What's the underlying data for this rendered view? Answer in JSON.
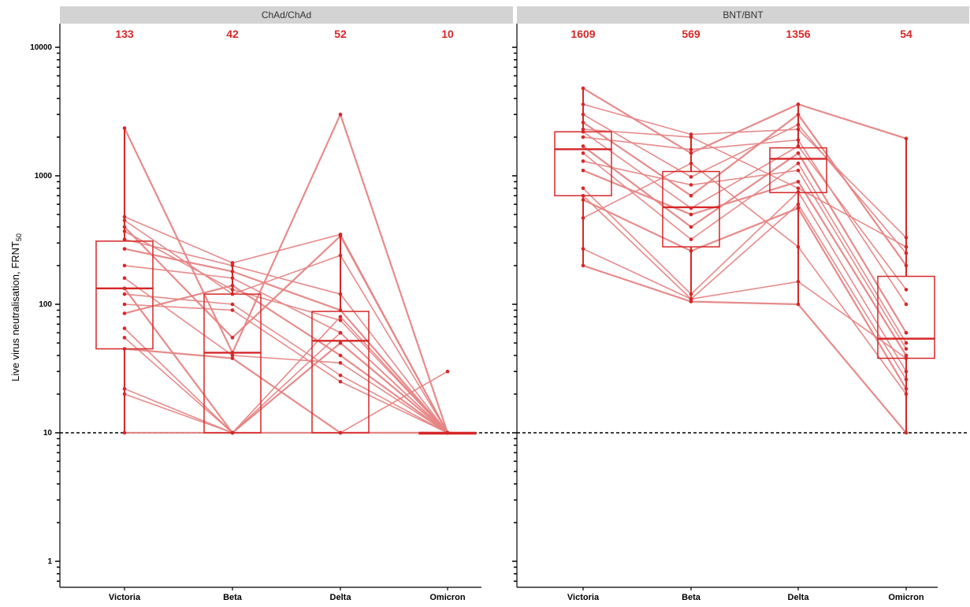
{
  "figure": {
    "ylabel": "Live virus neutralisation, FRNT",
    "ylabel_sub": "50",
    "threshold": 10,
    "accent_color": "#d62728",
    "line_color": "#e58585"
  },
  "chart_data": [
    {
      "type": "box",
      "panel": "ChAd/ChAd",
      "categories": [
        "Victoria",
        "Beta",
        "Delta",
        "Omicron"
      ],
      "geometric_means": [
        "133",
        "42",
        "52",
        "10"
      ],
      "yscale": "log",
      "ylim": [
        0.6,
        16000
      ],
      "yticks": [
        1,
        10,
        100,
        1000,
        10000
      ],
      "ytick_labels": [
        "1",
        "10",
        "100",
        "1000",
        "10000"
      ],
      "box_stats": [
        {
          "q1": 45,
          "median": 133,
          "q3": 310,
          "whisker_low": 10,
          "whisker_high": 2350
        },
        {
          "q1": 10,
          "median": 42,
          "q3": 120,
          "whisker_low": 10,
          "whisker_high": 210
        },
        {
          "q1": 10,
          "median": 52,
          "q3": 88,
          "whisker_low": 10,
          "whisker_high": 350
        },
        {
          "q1": 10,
          "median": 10,
          "q3": 10,
          "whisker_low": 10,
          "whisker_high": 10
        }
      ],
      "subjects": [
        [
          2350,
          42,
          3000,
          10
        ],
        [
          480,
          210,
          350,
          10
        ],
        [
          450,
          120,
          240,
          10
        ],
        [
          400,
          55,
          340,
          10
        ],
        [
          370,
          130,
          75,
          10
        ],
        [
          320,
          200,
          120,
          10
        ],
        [
          270,
          180,
          90,
          10
        ],
        [
          200,
          160,
          60,
          10
        ],
        [
          160,
          40,
          35,
          10
        ],
        [
          133,
          10,
          50,
          10
        ],
        [
          120,
          100,
          28,
          10
        ],
        [
          100,
          90,
          25,
          10
        ],
        [
          85,
          140,
          40,
          10
        ],
        [
          65,
          10,
          60,
          10
        ],
        [
          55,
          10,
          80,
          10
        ],
        [
          45,
          38,
          10,
          10
        ],
        [
          22,
          10,
          10,
          30
        ],
        [
          20,
          10,
          10,
          10
        ],
        [
          10,
          10,
          10,
          10
        ]
      ]
    },
    {
      "type": "box",
      "panel": "BNT/BNT",
      "categories": [
        "Victoria",
        "Beta",
        "Delta",
        "Omicron"
      ],
      "geometric_means": [
        "1609",
        "569",
        "1356",
        "54"
      ],
      "yscale": "log",
      "ylim": [
        0.6,
        16000
      ],
      "yticks": [
        1,
        10,
        100,
        1000,
        10000
      ],
      "box_stats": [
        {
          "q1": 700,
          "median": 1609,
          "q3": 2200,
          "whisker_low": 200,
          "whisker_high": 4800
        },
        {
          "q1": 280,
          "median": 569,
          "q3": 1080,
          "whisker_low": 110,
          "whisker_high": 2150
        },
        {
          "q1": 740,
          "median": 1356,
          "q3": 1650,
          "whisker_low": 100,
          "whisker_high": 3700
        },
        {
          "q1": 38,
          "median": 54,
          "q3": 165,
          "whisker_low": 10,
          "whisker_high": 1950
        }
      ],
      "subjects": [
        [
          4800,
          1500,
          3600,
          1950
        ],
        [
          3600,
          2100,
          2300,
          330
        ],
        [
          3000,
          980,
          2500,
          250
        ],
        [
          2600,
          700,
          3000,
          200
        ],
        [
          2200,
          560,
          1700,
          130
        ],
        [
          2000,
          1600,
          1900,
          100
        ],
        [
          1700,
          400,
          1500,
          60
        ],
        [
          1500,
          320,
          1250,
          50
        ],
        [
          1300,
          850,
          1100,
          45
        ],
        [
          1100,
          500,
          900,
          40
        ],
        [
          800,
          120,
          750,
          30
        ],
        [
          700,
          110,
          600,
          26
        ],
        [
          650,
          260,
          560,
          22
        ],
        [
          470,
          1250,
          280,
          20
        ],
        [
          270,
          110,
          150,
          38
        ],
        [
          200,
          105,
          100,
          10
        ],
        [
          2300,
          2000,
          800,
          280
        ]
      ]
    }
  ]
}
